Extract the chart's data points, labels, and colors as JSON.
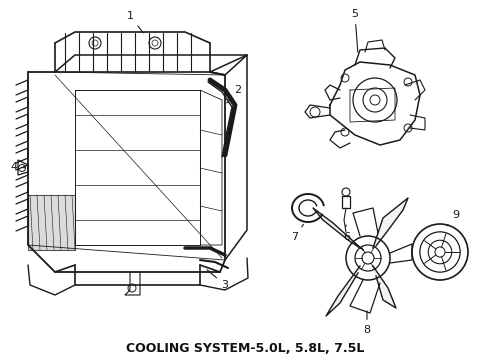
{
  "title": "COOLING SYSTEM-  5.0L, 5.8L, 7.5L",
  "title_display": "COOLING SYSTEM-5.0L, 5.8L, 7.5L",
  "background_color": "#f5f5f0",
  "line_color": "#1a1a1a",
  "label_color": "#111111",
  "figsize": [
    4.9,
    3.6
  ],
  "dpi": 100,
  "title_fontsize": 9.0
}
